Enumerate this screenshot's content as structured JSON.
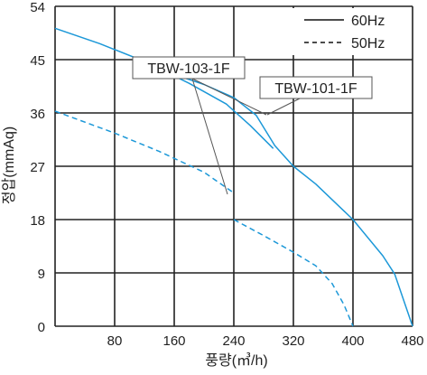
{
  "chart_data": {
    "type": "line",
    "xlabel": "풍량(㎥/h)",
    "ylabel": "정압(mmAq)",
    "xlim": [
      0,
      480
    ],
    "ylim": [
      0,
      54
    ],
    "xticks": [
      0,
      80,
      160,
      240,
      320,
      400,
      480
    ],
    "yticks": [
      0,
      9,
      18,
      27,
      36,
      45,
      54
    ],
    "grid": true,
    "legend_position": "top-right",
    "legend": [
      {
        "label": "60Hz",
        "style": "solid"
      },
      {
        "label": "50Hz",
        "style": "dashed"
      }
    ],
    "annotations": [
      {
        "text": "TBW-103-1F",
        "points_to_series": [
          "TBW-103-1F 60Hz",
          "TBW-103-1F 50Hz"
        ]
      },
      {
        "text": "TBW-101-1F",
        "points_to_series": [
          "TBW-101-1F 60Hz"
        ]
      }
    ],
    "series": [
      {
        "name": "TBW-103-1F 60Hz",
        "style": "solid",
        "x": [
          0,
          60,
          120,
          180,
          230,
          262,
          293
        ],
        "y": [
          50.3,
          47.7,
          44.7,
          41.0,
          37.5,
          33.9,
          30.0
        ]
      },
      {
        "name": "TBW-101-1F 60Hz",
        "style": "solid",
        "x": [
          160,
          200,
          240,
          270,
          295,
          320,
          350,
          400,
          440,
          456,
          480
        ],
        "y": [
          42.5,
          40.8,
          38.6,
          35.6,
          30.5,
          27.0,
          24.0,
          18.0,
          11.9,
          8.8,
          0
        ]
      },
      {
        "name": "TBW-103-1F 50Hz",
        "style": "dashed",
        "x": [
          0,
          80,
          140,
          200,
          240
        ],
        "y": [
          36.3,
          32.6,
          29.5,
          26.0,
          22.5
        ]
      },
      {
        "name": "TBW-101-1F 50Hz",
        "style": "dashed",
        "x": [
          240,
          280,
          320,
          350,
          372,
          388,
          400
        ],
        "y": [
          18.0,
          15.3,
          12.5,
          10.2,
          7.2,
          3.6,
          0
        ]
      }
    ]
  },
  "colors": {
    "curve": "#1c98d8",
    "grid": "#222222",
    "leader": "#555555",
    "legend_line": "#111111"
  }
}
